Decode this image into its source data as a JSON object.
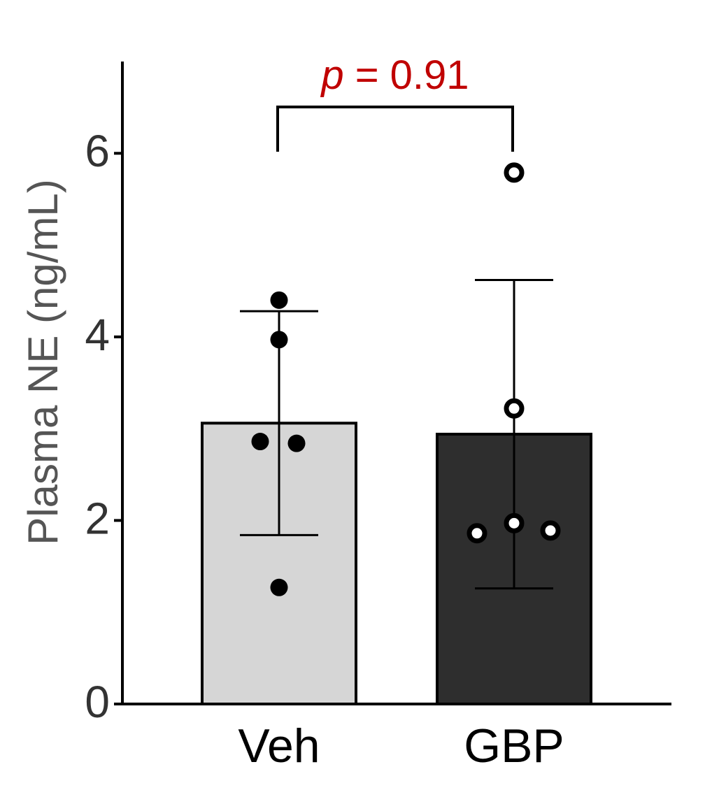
{
  "chart_data": {
    "type": "bar",
    "categories": [
      "Veh",
      "GBP"
    ],
    "values": [
      3.06,
      2.94
    ],
    "errors": [
      1.22,
      1.68
    ],
    "colors": [
      "#d6d6d6",
      "#2e2e2e"
    ],
    "points": [
      [
        4.4,
        3.97,
        2.86,
        2.84,
        1.27
      ],
      [
        5.79,
        3.22,
        1.86,
        1.97,
        1.89
      ]
    ],
    "point_fills": [
      "#000000",
      "#ffffff"
    ],
    "y_label": "Plasma NE (ng/mL)",
    "ylim": [
      0,
      7
    ],
    "yticks": [
      0,
      2,
      4,
      6
    ],
    "annotation": {
      "symbol": "p",
      "text": "= 0.91"
    }
  }
}
